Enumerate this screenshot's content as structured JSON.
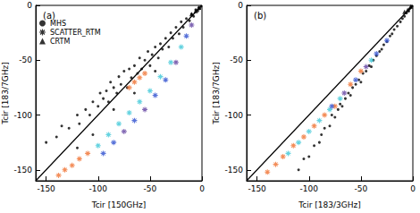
{
  "chart_data": [
    {
      "type": "scatter",
      "title": "(a)",
      "xlabel": "Tcir [150GHz]",
      "ylabel": "Tcir [183/7GHz]",
      "xlim": [
        -160,
        0
      ],
      "ylim": [
        -160,
        0
      ],
      "xticks": [
        -150,
        -100,
        -50,
        0
      ],
      "yticks": [
        -150,
        -100,
        -50,
        0
      ],
      "grid": false,
      "legend": "upper left",
      "series": [
        {
          "name": "MHS",
          "marker": "circle",
          "color": "#000000",
          "x": [
            -150,
            -140,
            -135,
            -128,
            -120,
            -118,
            -112,
            -108,
            -105,
            -100,
            -98,
            -95,
            -92,
            -90,
            -88,
            -85,
            -82,
            -80,
            -78,
            -75,
            -72,
            -70,
            -68,
            -65,
            -62,
            -60,
            -58,
            -55,
            -52,
            -50,
            -48,
            -45,
            -42,
            -40,
            -38,
            -35,
            -32,
            -30,
            -28,
            -25,
            -22,
            -20,
            -18,
            -15,
            -12,
            -10,
            -8,
            -6,
            -4,
            -3,
            -2,
            -1,
            -120,
            -105,
            -85,
            -65,
            -45
          ],
          "values": [
            -125,
            -120,
            -110,
            -112,
            -100,
            -108,
            -95,
            -100,
            -88,
            -92,
            -80,
            -85,
            -78,
            -88,
            -70,
            -75,
            -80,
            -65,
            -72,
            -60,
            -75,
            -58,
            -66,
            -55,
            -62,
            -48,
            -58,
            -50,
            -42,
            -55,
            -45,
            -38,
            -48,
            -35,
            -40,
            -30,
            -38,
            -25,
            -30,
            -20,
            -26,
            -15,
            -20,
            -12,
            -14,
            -8,
            -10,
            -4,
            -5,
            -2,
            -3,
            -1,
            -130,
            -118,
            -95,
            -80,
            -60
          ]
        },
        {
          "name": "SCATTER_RTM",
          "marker": "asterisk",
          "x": [
            -138,
            -132,
            -125,
            -118,
            -110,
            -70,
            -65,
            -60,
            -55,
            -100,
            -90,
            -80,
            -70,
            -60,
            -50,
            -40,
            -30,
            -20,
            -95,
            -85,
            -75,
            -65,
            -55,
            -45,
            -35,
            -25,
            -15,
            -10
          ],
          "values": [
            -155,
            -150,
            -146,
            -140,
            -135,
            -75,
            -70,
            -66,
            -62,
            -128,
            -118,
            -108,
            -98,
            -88,
            -78,
            -65,
            -52,
            -38,
            -135,
            -125,
            -115,
            -105,
            -95,
            -82,
            -68,
            -52,
            -28,
            -18
          ],
          "colors": [
            "#f07030",
            "#f07030",
            "#f07030",
            "#f07030",
            "#f07030",
            "#f07030",
            "#f07030",
            "#f07030",
            "#f07030",
            "#40c8d8",
            "#40c8d8",
            "#40c8d8",
            "#40c8d8",
            "#40c8d8",
            "#40c8d8",
            "#40c8d8",
            "#40c8d8",
            "#40c8d8",
            "#3050d0",
            "#3050d0",
            "#6040a0",
            "#3050d0",
            "#6040a0",
            "#3050d0",
            "#3050d0",
            "#6040a0",
            "#3050d0",
            "#6040a0"
          ]
        },
        {
          "name": "CRTM",
          "marker": "triangle",
          "color": "#000000",
          "x": [
            -10,
            -6,
            -3
          ],
          "values": [
            -8,
            -5,
            -2
          ]
        },
        {
          "type": "line",
          "color": "#000000",
          "x": [
            -160,
            0
          ],
          "values": [
            -160,
            0
          ]
        }
      ]
    },
    {
      "type": "scatter",
      "title": "(b)",
      "xlabel": "Tcir [183/3GHz]",
      "ylabel": "Tcir [183/7GHz]",
      "xlim": [
        -160,
        0
      ],
      "ylim": [
        -160,
        0
      ],
      "xticks": [
        -150,
        -100,
        -50,
        0
      ],
      "yticks": [
        -150,
        -100,
        -50,
        0
      ],
      "grid": false,
      "series": [
        {
          "name": "MHS",
          "marker": "circle",
          "color": "#000000",
          "x": [
            -110,
            -105,
            -100,
            -95,
            -90,
            -88,
            -85,
            -80,
            -78,
            -75,
            -72,
            -70,
            -68,
            -65,
            -62,
            -60,
            -58,
            -55,
            -52,
            -50,
            -48,
            -45,
            -42,
            -40,
            -38,
            -35,
            -32,
            -30,
            -28,
            -25,
            -22,
            -20,
            -18,
            -15,
            -12,
            -10,
            -8,
            -6,
            -4,
            -3,
            -2,
            -1
          ],
          "values": [
            -150,
            -140,
            -138,
            -128,
            -125,
            -118,
            -112,
            -110,
            -100,
            -102,
            -95,
            -90,
            -92,
            -85,
            -80,
            -82,
            -75,
            -72,
            -68,
            -70,
            -62,
            -60,
            -55,
            -56,
            -50,
            -46,
            -42,
            -40,
            -36,
            -33,
            -28,
            -26,
            -22,
            -19,
            -15,
            -12,
            -10,
            -7,
            -5,
            -3,
            -2,
            -1
          ]
        },
        {
          "name": "SCATTER_RTM",
          "marker": "asterisk",
          "x": [
            -140,
            -132,
            -125,
            -115,
            -105,
            -95,
            -85,
            -75,
            -60,
            -50,
            -120,
            -110,
            -100,
            -90,
            -80,
            -70,
            -40,
            -78,
            -66,
            -55,
            -45,
            -35,
            -25
          ],
          "values": [
            -152,
            -145,
            -138,
            -128,
            -120,
            -110,
            -100,
            -92,
            -72,
            -60,
            -135,
            -125,
            -115,
            -105,
            -95,
            -85,
            -50,
            -92,
            -80,
            -68,
            -56,
            -44,
            -32
          ],
          "colors": [
            "#f07030",
            "#f07030",
            "#f07030",
            "#f07030",
            "#f07030",
            "#f07030",
            "#f07030",
            "#f07030",
            "#f07030",
            "#f07030",
            "#40c8d8",
            "#40c8d8",
            "#40c8d8",
            "#40c8d8",
            "#40c8d8",
            "#40c8d8",
            "#40c8d8",
            "#3050d0",
            "#6040a0",
            "#3050d0",
            "#6040a0",
            "#3050d0",
            "#3050d0"
          ]
        },
        {
          "name": "CRTM",
          "marker": "triangle",
          "color": "#000000",
          "x": [
            -8,
            -5,
            -2
          ],
          "values": [
            -6,
            -4,
            -1
          ]
        },
        {
          "type": "line",
          "color": "#000000",
          "x": [
            -160,
            0
          ],
          "values": [
            -160,
            0
          ]
        }
      ]
    }
  ]
}
